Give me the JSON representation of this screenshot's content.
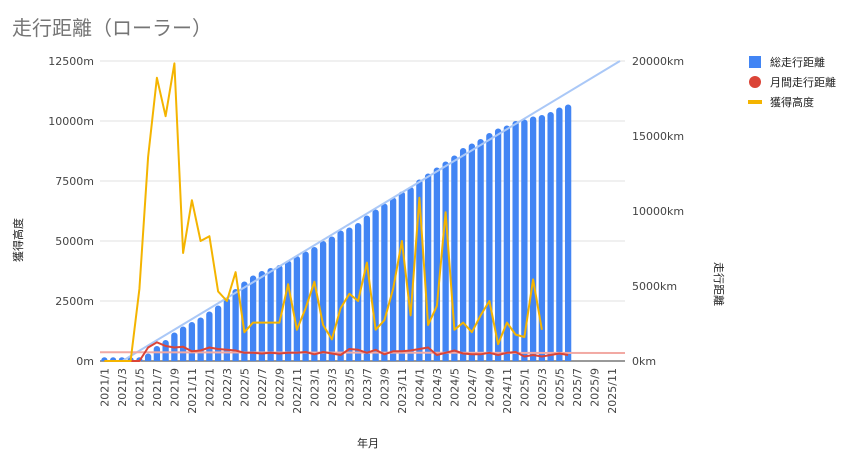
{
  "chart_data": {
    "type": "bar+line",
    "title": "走行距離（ローラー）",
    "xlabel": "年月",
    "ylabel_left": "獲得高度",
    "ylabel_right": "走行距離",
    "ylim_left": [
      0,
      12500
    ],
    "ylim_right": [
      0,
      20000
    ],
    "yticks_left": [
      "0m",
      "2500m",
      "5000m",
      "7500m",
      "10000m",
      "12500m"
    ],
    "yticks_right": [
      "0km",
      "5000km",
      "10000km",
      "15000km",
      "20000km"
    ],
    "legend_position": "top-right",
    "x_tick_labels": [
      "2021/1",
      "2021/3",
      "2021/5",
      "2021/7",
      "2021/9",
      "2021/11",
      "2022/1",
      "2022/3",
      "2022/5",
      "2022/7",
      "2022/9",
      "2022/11",
      "2023/1",
      "2023/3",
      "2023/5",
      "2023/7",
      "2023/9",
      "2023/11",
      "2024/1",
      "2024/3",
      "2024/5",
      "2024/7",
      "2024/9",
      "2024/11",
      "2025/1",
      "2025/3",
      "2025/5",
      "2025/7",
      "2025/9",
      "2025/11"
    ],
    "months": [
      "2021/1",
      "2021/2",
      "2021/3",
      "2021/4",
      "2021/5",
      "2021/6",
      "2021/7",
      "2021/8",
      "2021/9",
      "2021/10",
      "2021/11",
      "2021/12",
      "2022/1",
      "2022/2",
      "2022/3",
      "2022/4",
      "2022/5",
      "2022/6",
      "2022/7",
      "2022/8",
      "2022/9",
      "2022/10",
      "2022/11",
      "2022/12",
      "2023/1",
      "2023/2",
      "2023/3",
      "2023/4",
      "2023/5",
      "2023/6",
      "2023/7",
      "2023/8",
      "2023/9",
      "2023/10",
      "2023/11",
      "2023/12",
      "2024/1",
      "2024/2",
      "2024/3",
      "2024/4",
      "2024/5",
      "2024/6",
      "2024/7",
      "2024/8",
      "2024/9",
      "2024/10",
      "2024/11",
      "2024/12",
      "2025/1",
      "2025/2",
      "2025/3",
      "2025/4",
      "2025/5",
      "2025/6",
      "2025/7",
      "2025/8",
      "2025/9",
      "2025/10",
      "2025/11",
      "2025/12"
    ],
    "series": [
      {
        "name": "総走行距離",
        "axis": "right",
        "type": "bar",
        "color": "#4285f4",
        "values": [
          80,
          80,
          80,
          80,
          80,
          500,
          1000,
          1400,
          1900,
          2300,
          2600,
          2900,
          3300,
          3700,
          4200,
          4800,
          5300,
          5700,
          6000,
          6200,
          6400,
          6700,
          7000,
          7300,
          7600,
          8000,
          8300,
          8700,
          8900,
          9200,
          9700,
          10100,
          10500,
          10900,
          11300,
          11600,
          12100,
          12500,
          12900,
          13300,
          13700,
          14200,
          14500,
          14800,
          15200,
          15500,
          15700,
          16000,
          16100,
          16300,
          16400,
          16600,
          16900,
          17100,
          null,
          null,
          null,
          null,
          null,
          null
        ]
      },
      {
        "name": "月間走行距離",
        "axis": "right",
        "type": "line",
        "color": "#db4437",
        "values": [
          0,
          0,
          0,
          0,
          0,
          900,
          1250,
          1000,
          900,
          950,
          650,
          700,
          900,
          800,
          750,
          700,
          550,
          550,
          500,
          550,
          500,
          550,
          550,
          600,
          450,
          600,
          500,
          400,
          800,
          750,
          550,
          750,
          450,
          650,
          650,
          700,
          800,
          900,
          400,
          550,
          700,
          500,
          450,
          450,
          550,
          400,
          550,
          600,
          300,
          400,
          300,
          400,
          500,
          400,
          null,
          null,
          null,
          null,
          null,
          null
        ]
      },
      {
        "name": "獲得高度",
        "axis": "left",
        "type": "line",
        "color": "#f4b400",
        "values": [
          0,
          0,
          0,
          0,
          3000,
          8500,
          11800,
          10200,
          12400,
          4500,
          6700,
          5000,
          5200,
          2900,
          2500,
          3700,
          1200,
          1600,
          1600,
          1600,
          1600,
          3200,
          1300,
          2200,
          3300,
          1500,
          900,
          2200,
          2800,
          2500,
          4100,
          1300,
          1700,
          3000,
          5000,
          1900,
          6800,
          1500,
          2300,
          6200,
          1300,
          1600,
          1200,
          1900,
          2500,
          700,
          1600,
          1100,
          1000,
          3400,
          1300,
          null,
          null,
          null,
          null,
          null,
          null,
          null,
          null,
          null
        ]
      }
    ],
    "trendlines": [
      {
        "series": "総走行距離",
        "color": "#aac8f7"
      },
      {
        "series": "月間走行距離",
        "color": "#f2a9a3"
      }
    ]
  }
}
